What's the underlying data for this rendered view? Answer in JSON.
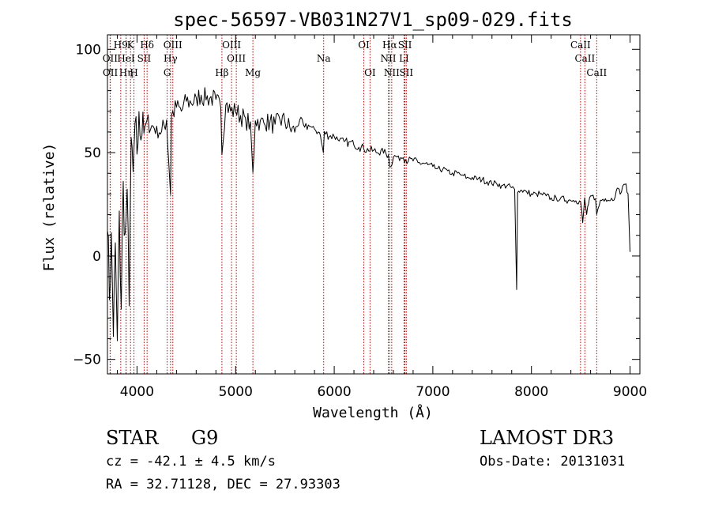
{
  "chart_data": {
    "type": "line",
    "title": "spec-56597-VB031N27V1_sp09-029.fits",
    "xlabel": "Wavelength (Å)",
    "ylabel": "Flux (relative)",
    "xlim": [
      3700,
      9100
    ],
    "ylim": [
      -57,
      107
    ],
    "x_ticks": [
      4000,
      5000,
      6000,
      7000,
      8000,
      9000
    ],
    "y_ticks": [
      -50,
      0,
      50,
      100
    ],
    "series": [
      {
        "name": "flux",
        "color": "#000000",
        "x": [
          3700,
          3720,
          3740,
          3760,
          3780,
          3800,
          3820,
          3840,
          3860,
          3880,
          3900,
          3920,
          3940,
          3960,
          3980,
          4000,
          4020,
          4040,
          4060,
          4080,
          4100,
          4150,
          4200,
          4250,
          4300,
          4340,
          4350,
          4400,
          4450,
          4500,
          4550,
          4600,
          4650,
          4700,
          4750,
          4800,
          4850,
          4861,
          4900,
          4950,
          5000,
          5050,
          5100,
          5150,
          5175,
          5200,
          5250,
          5300,
          5350,
          5400,
          5450,
          5500,
          5550,
          5600,
          5650,
          5700,
          5750,
          5800,
          5850,
          5890,
          5900,
          5950,
          6000,
          6050,
          6100,
          6150,
          6200,
          6250,
          6300,
          6350,
          6400,
          6450,
          6500,
          6550,
          6563,
          6600,
          6650,
          6700,
          6750,
          6800,
          6850,
          6900,
          6950,
          7000,
          7050,
          7100,
          7150,
          7200,
          7250,
          7300,
          7350,
          7400,
          7450,
          7500,
          7550,
          7600,
          7650,
          7700,
          7750,
          7800,
          7830,
          7850,
          7860,
          7880,
          7900,
          7950,
          8000,
          8050,
          8100,
          8150,
          8200,
          8250,
          8300,
          8350,
          8400,
          8450,
          8500,
          8520,
          8540,
          8560,
          8600,
          8650,
          8662,
          8700,
          8750,
          8800,
          8850,
          8880,
          8900,
          8950,
          8980,
          9000
        ],
        "y": [
          15,
          -20,
          10,
          -38,
          5,
          -42,
          20,
          -25,
          35,
          10,
          30,
          -22,
          55,
          40,
          62,
          50,
          68,
          58,
          70,
          60,
          65,
          63,
          62,
          60,
          66,
          30,
          68,
          72,
          70,
          75,
          74,
          76,
          78,
          76,
          77,
          75,
          72,
          50,
          74,
          70,
          70,
          68,
          66,
          64,
          40,
          66,
          65,
          64,
          65,
          63,
          66,
          65,
          62,
          60,
          66,
          62,
          63,
          61,
          60,
          50,
          60,
          58,
          58,
          56,
          55,
          55,
          54,
          53,
          52,
          51,
          51,
          50,
          50,
          49,
          43,
          48,
          48,
          48,
          46,
          46,
          45,
          45,
          44,
          43,
          42,
          42,
          41,
          40,
          40,
          39,
          38,
          38,
          37,
          37,
          36,
          35,
          35,
          34,
          34,
          33,
          32,
          -16,
          31,
          31,
          32,
          31,
          30,
          30,
          30,
          29,
          28,
          28,
          28,
          27,
          27,
          27,
          26,
          16,
          28,
          20,
          29,
          28,
          20,
          27,
          28,
          27,
          29,
          33,
          30,
          35,
          30,
          2
        ]
      }
    ],
    "line_markers": [
      {
        "name": "H9",
        "wavelength": 3835
      },
      {
        "name": "OII",
        "wavelength": 3727
      },
      {
        "name": "OII",
        "wavelength": 3729
      },
      {
        "name": "K",
        "wavelength": 3934
      },
      {
        "name": "H",
        "wavelength": 3969
      },
      {
        "name": "HeI",
        "wavelength": 3889
      },
      {
        "name": "Hη",
        "wavelength": 3889
      },
      {
        "name": "SII",
        "wavelength": 4072
      },
      {
        "name": "Hδ",
        "wavelength": 4102
      },
      {
        "name": "OIII",
        "wavelength": 4363
      },
      {
        "name": "Hγ",
        "wavelength": 4340
      },
      {
        "name": "G",
        "wavelength": 4306
      },
      {
        "name": "Hβ",
        "wavelength": 4861
      },
      {
        "name": "OIII",
        "wavelength": 4959
      },
      {
        "name": "OIII",
        "wavelength": 5007
      },
      {
        "name": "Mg",
        "wavelength": 5175
      },
      {
        "name": "Na",
        "wavelength": 5893
      },
      {
        "name": "OI",
        "wavelength": 6300
      },
      {
        "name": "OI",
        "wavelength": 6363
      },
      {
        "name": "Hα",
        "wavelength": 6563
      },
      {
        "name": "NII",
        "wavelength": 6548
      },
      {
        "name": "NII",
        "wavelength": 6583
      },
      {
        "name": "SII",
        "wavelength": 6717
      },
      {
        "name": "LI",
        "wavelength": 6708
      },
      {
        "name": "SII",
        "wavelength": 6731
      },
      {
        "name": "CaII",
        "wavelength": 8498
      },
      {
        "name": "CaII",
        "wavelength": 8542
      },
      {
        "name": "CaII",
        "wavelength": 8662
      }
    ],
    "line_labels": [
      {
        "text": "H9",
        "wavelength": 3835,
        "row": 1
      },
      {
        "text": "K",
        "wavelength": 3934,
        "row": 1
      },
      {
        "text": "Hδ",
        "wavelength": 4102,
        "row": 1
      },
      {
        "text": "OIII",
        "wavelength": 4363,
        "row": 1
      },
      {
        "text": "OIII",
        "wavelength": 4959,
        "row": 1
      },
      {
        "text": "OI",
        "wavelength": 6300,
        "row": 1
      },
      {
        "text": "Hα",
        "wavelength": 6563,
        "row": 1
      },
      {
        "text": "SII",
        "wavelength": 6717,
        "row": 1
      },
      {
        "text": "CaII",
        "wavelength": 8498,
        "row": 1
      },
      {
        "text": "OII",
        "wavelength": 3727,
        "row": 2
      },
      {
        "text": "HeI",
        "wavelength": 3889,
        "row": 2
      },
      {
        "text": "SII",
        "wavelength": 4072,
        "row": 2
      },
      {
        "text": "Hγ",
        "wavelength": 4340,
        "row": 2
      },
      {
        "text": "OIII",
        "wavelength": 5007,
        "row": 2
      },
      {
        "text": "Na",
        "wavelength": 5893,
        "row": 2
      },
      {
        "text": "NII",
        "wavelength": 6548,
        "row": 2
      },
      {
        "text": "LI",
        "wavelength": 6708,
        "row": 2
      },
      {
        "text": "CaII",
        "wavelength": 8542,
        "row": 2
      },
      {
        "text": "OII",
        "wavelength": 3729,
        "row": 3
      },
      {
        "text": "Hη",
        "wavelength": 3889,
        "row": 3
      },
      {
        "text": "H",
        "wavelength": 3969,
        "row": 3
      },
      {
        "text": "G",
        "wavelength": 4306,
        "row": 3
      },
      {
        "text": "Hβ",
        "wavelength": 4861,
        "row": 3
      },
      {
        "text": "Mg",
        "wavelength": 5175,
        "row": 3
      },
      {
        "text": "OI",
        "wavelength": 6363,
        "row": 3
      },
      {
        "text": "NII",
        "wavelength": 6583,
        "row": 3
      },
      {
        "text": "SII",
        "wavelength": 6731,
        "row": 3
      },
      {
        "text": "CaII",
        "wavelength": 8662,
        "row": 3
      }
    ],
    "marker_color": "#c00000",
    "grid": false,
    "legend": "none"
  },
  "info": {
    "object_class": "STAR",
    "subclass": "G9",
    "survey": "LAMOST DR3",
    "cz": "cz = -42.1 ± 4.5 km/s",
    "obs_date": "Obs-Date: 20131031",
    "coords": "RA =  32.71128, DEC =  27.93303"
  }
}
